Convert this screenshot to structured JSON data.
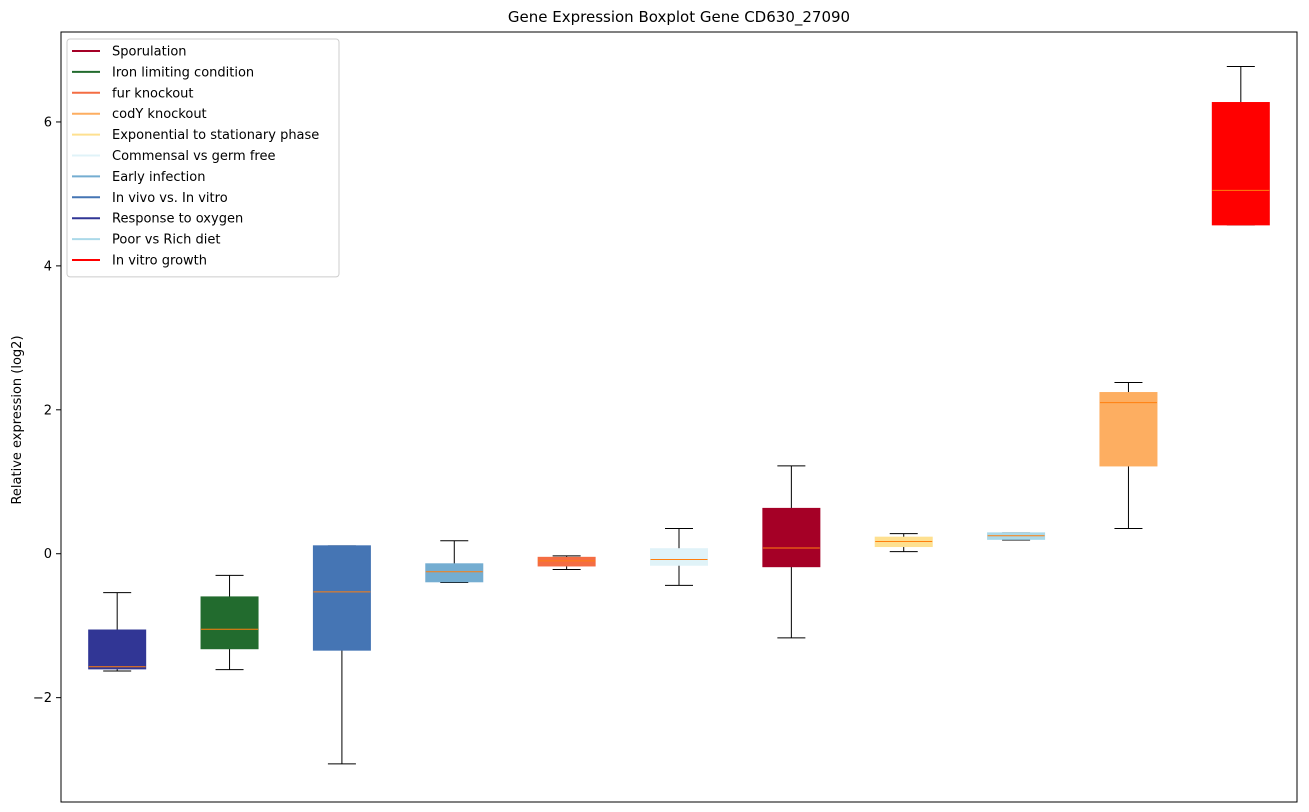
{
  "chart_data": {
    "type": "boxplot",
    "title": "Gene Expression Boxplot Gene CD630_27090",
    "xlabel": "",
    "ylabel": "Relative expression (log2)",
    "ylim": [
      -3.45,
      7.25
    ],
    "yticks": [
      -2,
      0,
      2,
      4,
      6
    ],
    "ytick_labels": [
      "−2",
      "0",
      "2",
      "4",
      "6"
    ],
    "grid": false,
    "legend_position": "top-left",
    "median_color": "#ff7f0e",
    "whisker_color": "#000000",
    "legend": [
      {
        "label": "Sporulation",
        "color": "#a50026"
      },
      {
        "label": "Iron limiting condition",
        "color": "#226b2e"
      },
      {
        "label": "fur knockout",
        "color": "#f46d43"
      },
      {
        "label": "codY knockout",
        "color": "#fdae61"
      },
      {
        "label": "Exponential to stationary phase",
        "color": "#fee090"
      },
      {
        "label": "Commensal vs germ free",
        "color": "#e0f3f8"
      },
      {
        "label": "Early infection",
        "color": "#74add1"
      },
      {
        "label": "In vivo vs. In vitro",
        "color": "#4575b4"
      },
      {
        "label": "Response to oxygen",
        "color": "#313695"
      },
      {
        "label": "Poor vs Rich diet",
        "color": "#abd9e9"
      },
      {
        "label": "In vitro growth",
        "color": "#ff0000"
      }
    ],
    "boxes": [
      {
        "group": "Response to oxygen",
        "color": "#313695",
        "whisker_low": -1.63,
        "q1": -1.6,
        "median": -1.57,
        "q3": -1.06,
        "whisker_high": -0.54
      },
      {
        "group": "Iron limiting condition",
        "color": "#226b2e",
        "whisker_low": -1.61,
        "q1": -1.32,
        "median": -1.05,
        "q3": -0.6,
        "whisker_high": -0.3
      },
      {
        "group": "In vivo vs. In vitro",
        "color": "#4575b4",
        "whisker_low": -2.92,
        "q1": -1.34,
        "median": -0.53,
        "q3": 0.11,
        "whisker_high": 0.11
      },
      {
        "group": "Early infection",
        "color": "#74add1",
        "whisker_low": -0.4,
        "q1": -0.39,
        "median": -0.25,
        "q3": -0.14,
        "whisker_high": 0.18
      },
      {
        "group": "fur knockout",
        "color": "#f46d43",
        "whisker_low": -0.22,
        "q1": -0.17,
        "median": -0.1,
        "q3": -0.05,
        "whisker_high": -0.03
      },
      {
        "group": "Commensal vs germ free",
        "color": "#e0f3f8",
        "whisker_low": -0.44,
        "q1": -0.16,
        "median": -0.08,
        "q3": 0.07,
        "whisker_high": 0.35
      },
      {
        "group": "Sporulation",
        "color": "#a50026",
        "whisker_low": -1.17,
        "q1": -0.18,
        "median": 0.08,
        "q3": 0.63,
        "whisker_high": 1.22
      },
      {
        "group": "Exponential to stationary phase",
        "color": "#fee090",
        "whisker_low": 0.03,
        "q1": 0.1,
        "median": 0.17,
        "q3": 0.23,
        "whisker_high": 0.28
      },
      {
        "group": "Poor vs Rich diet",
        "color": "#abd9e9",
        "whisker_low": 0.19,
        "q1": 0.2,
        "median": 0.25,
        "q3": 0.29,
        "whisker_high": 0.29
      },
      {
        "group": "codY knockout",
        "color": "#fdae61",
        "whisker_low": 0.35,
        "q1": 1.22,
        "median": 2.1,
        "q3": 2.24,
        "whisker_high": 2.38
      },
      {
        "group": "In vitro growth",
        "color": "#ff0000",
        "whisker_low": 4.57,
        "q1": 4.57,
        "median": 5.05,
        "q3": 6.27,
        "whisker_high": 6.77
      }
    ]
  }
}
